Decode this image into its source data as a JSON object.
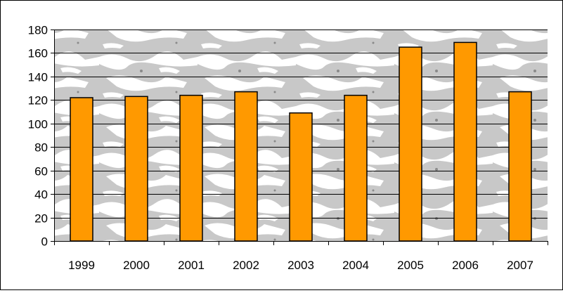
{
  "chart_data": {
    "type": "bar",
    "categories": [
      "1999",
      "2000",
      "2001",
      "2002",
      "2003",
      "2004",
      "2005",
      "2006",
      "2007"
    ],
    "values": [
      122,
      123,
      124,
      127,
      109,
      124,
      165,
      169,
      127
    ],
    "ylim": [
      0,
      180
    ],
    "yticks": [
      0,
      20,
      40,
      60,
      80,
      100,
      120,
      140,
      160,
      180
    ],
    "title": "",
    "xlabel": "",
    "ylabel": "",
    "grid": true,
    "legend": "none"
  },
  "colors": {
    "bar_fill": "#FF9900",
    "bar_stroke": "#000000",
    "plot_background": "#C8C8C8",
    "plot_texture": "#FFFFFF",
    "gridline": "#000000"
  }
}
